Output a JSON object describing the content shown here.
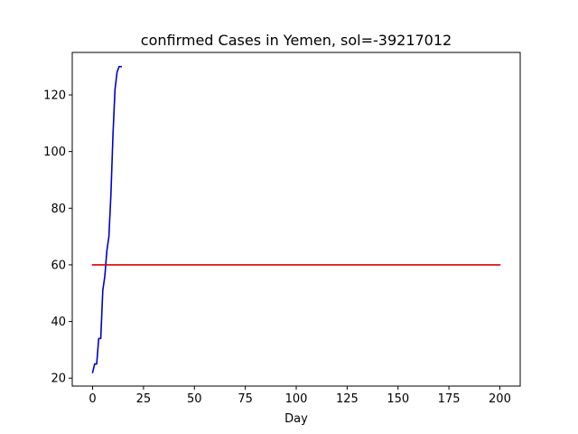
{
  "chart_data": {
    "type": "line",
    "title": "confirmed Cases in Yemen, sol=-39217012",
    "xlabel": "Day",
    "ylabel": "",
    "xlim": [
      -10,
      210
    ],
    "ylim": [
      17.2,
      135.0
    ],
    "xticks": [
      0,
      25,
      50,
      75,
      100,
      125,
      150,
      175,
      200
    ],
    "yticks": [
      20,
      40,
      60,
      80,
      100,
      120
    ],
    "grid": false,
    "series": [
      {
        "color": "#0000cc",
        "x": [
          0,
          1,
          2,
          3,
          4,
          5,
          6,
          7,
          8,
          9,
          10,
          11,
          12,
          13,
          14
        ],
        "y": [
          22,
          25,
          25,
          34,
          34,
          51,
          56,
          65,
          70,
          85,
          106,
          122,
          128,
          130,
          130
        ]
      },
      {
        "color": "#dd0000",
        "x": [
          0,
          200
        ],
        "y": [
          60,
          60
        ]
      }
    ]
  }
}
